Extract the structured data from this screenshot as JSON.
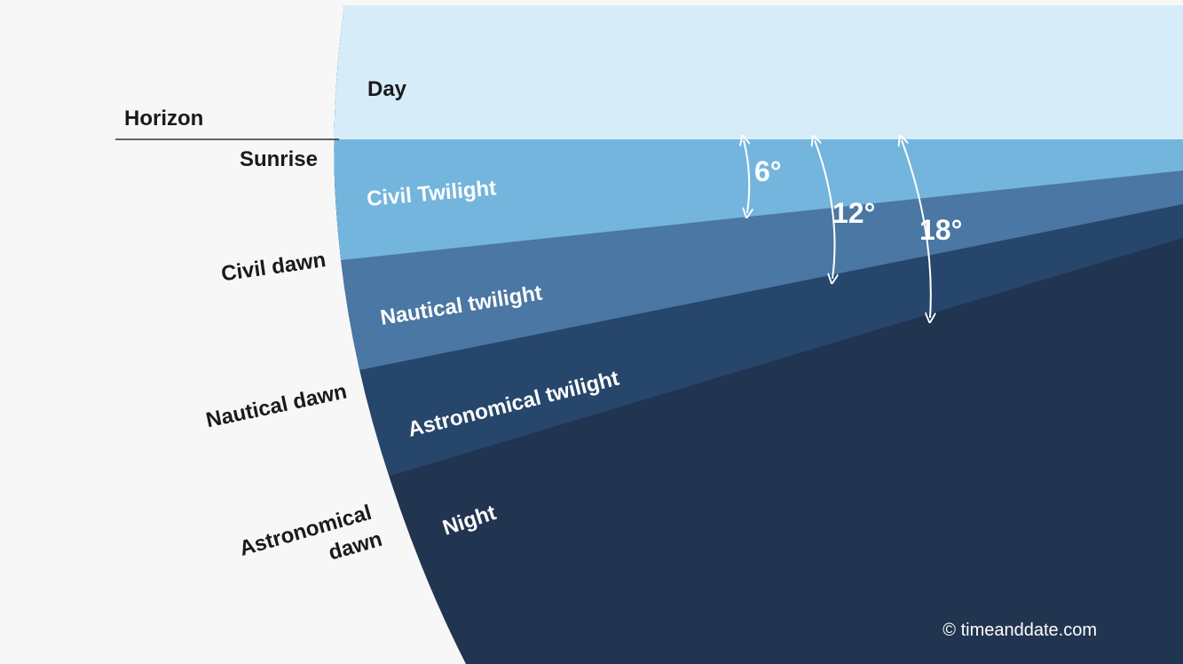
{
  "colors": {
    "background": "#f7f7f7",
    "day": "#d6ecf9",
    "civil_twilight": "#74b5dd",
    "nautical_twilight": "#4a77a3",
    "astronomical_twilight": "#27466c",
    "night": "#213450",
    "horizon_line": "#333333",
    "text_dark": "#1a1a1a",
    "text_light": "#ffffff"
  },
  "left_labels": {
    "horizon": "Horizon",
    "sunrise": "Sunrise",
    "civil_dawn": "Civil dawn",
    "nautical_dawn": "Nautical dawn",
    "astronomical_dawn_line1": "Astronomical",
    "astronomical_dawn_line2": "dawn"
  },
  "bands": {
    "day": "Day",
    "civil_twilight": "Civil Twilight",
    "nautical_twilight": "Nautical twilight",
    "astronomical_twilight": "Astronomical twilight",
    "night": "Night"
  },
  "angles": {
    "civil": "6°",
    "nautical": "12°",
    "astronomical": "18°"
  },
  "credit": "© timeanddate.com"
}
